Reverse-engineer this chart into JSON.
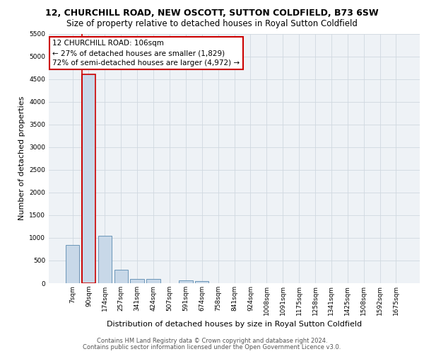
{
  "title_line1": "12, CHURCHILL ROAD, NEW OSCOTT, SUTTON COLDFIELD, B73 6SW",
  "title_line2": "Size of property relative to detached houses in Royal Sutton Coldfield",
  "xlabel": "Distribution of detached houses by size in Royal Sutton Coldfield",
  "ylabel": "Number of detached properties",
  "footer_line1": "Contains HM Land Registry data © Crown copyright and database right 2024.",
  "footer_line2": "Contains public sector information licensed under the Open Government Licence v3.0.",
  "annotation_title": "12 CHURCHILL ROAD: 106sqm",
  "annotation_line1": "← 27% of detached houses are smaller (1,829)",
  "annotation_line2": "72% of semi-detached houses are larger (4,972) →",
  "bar_labels": [
    "7sqm",
    "90sqm",
    "174sqm",
    "257sqm",
    "341sqm",
    "424sqm",
    "507sqm",
    "591sqm",
    "674sqm",
    "758sqm",
    "841sqm",
    "924sqm",
    "1008sqm",
    "1091sqm",
    "1175sqm",
    "1258sqm",
    "1341sqm",
    "1425sqm",
    "1508sqm",
    "1592sqm",
    "1675sqm"
  ],
  "bar_values": [
    850,
    4600,
    1050,
    300,
    100,
    100,
    0,
    55,
    50,
    0,
    0,
    0,
    0,
    0,
    0,
    0,
    0,
    0,
    0,
    0,
    0
  ],
  "bar_color": "#c8d8e8",
  "bar_edge_color": "#5a8ab0",
  "highlight_bar_index": 1,
  "highlight_edge_color": "#cc0000",
  "vline_color": "#cc0000",
  "ylim": [
    0,
    5500
  ],
  "yticks": [
    0,
    500,
    1000,
    1500,
    2000,
    2500,
    3000,
    3500,
    4000,
    4500,
    5000,
    5500
  ],
  "grid_color": "#d0d8e0",
  "bg_color": "#eef2f6",
  "annotation_box_color": "#ffffff",
  "annotation_box_edge": "#cc0000",
  "title1_fontsize": 9,
  "title2_fontsize": 8.5,
  "tick_fontsize": 6.5,
  "ylabel_fontsize": 8,
  "xlabel_fontsize": 8,
  "annotation_fontsize": 7.5,
  "footer_fontsize": 6
}
